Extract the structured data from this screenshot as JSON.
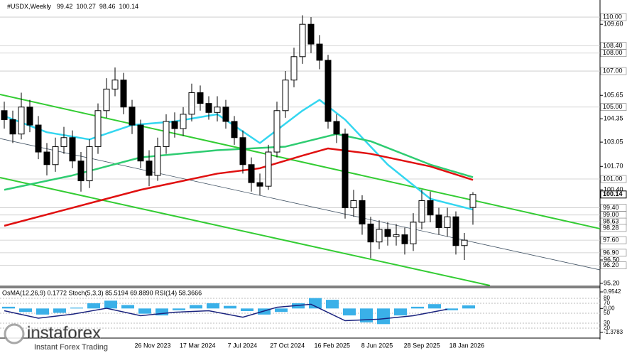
{
  "chart_data": {
    "type": "candlestick",
    "title": "#USDX,Weekly",
    "open": [
      104.8,
      104.3,
      103.5,
      105.0,
      104.0,
      102.5,
      101.8,
      102.8,
      103.3,
      102.0,
      100.9,
      102.8,
      104.8,
      106.0,
      106.5,
      105.0,
      104.0,
      102.0,
      101.2,
      102.8,
      104.2,
      103.8,
      104.6,
      105.8,
      105.2,
      104.7,
      105.0,
      104.2,
      103.3,
      101.8,
      100.8,
      100.6,
      102.5,
      104.8,
      106.5,
      107.8,
      109.6,
      108.5,
      107.6,
      104.2,
      103.5,
      99.4,
      99.8,
      98.5,
      97.5,
      98.2,
      97.8,
      97.9,
      97.4,
      98.6,
      99.8,
      99.0,
      98.3,
      98.9,
      97.3,
      99.42
    ],
    "high": [
      105.3,
      104.8,
      105.8,
      105.4,
      104.5,
      103.0,
      103.3,
      103.9,
      103.7,
      102.5,
      103.2,
      105.2,
      106.6,
      107.2,
      106.9,
      105.4,
      104.3,
      102.6,
      103.3,
      104.6,
      104.7,
      105.0,
      106.3,
      106.2,
      105.6,
      105.6,
      105.4,
      104.5,
      103.7,
      102.2,
      101.3,
      102.9,
      105.3,
      107.0,
      108.3,
      110.1,
      110.0,
      109.0,
      107.9,
      104.6,
      103.8,
      100.4,
      100.1,
      98.9,
      98.7,
      98.6,
      98.5,
      98.3,
      99.1,
      100.4,
      100.3,
      99.4,
      99.4,
      99.2,
      98.0,
      100.27
    ],
    "low": [
      103.8,
      103.0,
      103.2,
      103.6,
      102.1,
      101.2,
      101.4,
      102.4,
      101.6,
      100.3,
      100.5,
      102.4,
      104.4,
      105.6,
      104.6,
      103.5,
      101.6,
      100.6,
      100.9,
      102.4,
      103.3,
      103.4,
      104.2,
      104.8,
      104.3,
      104.2,
      103.8,
      102.9,
      101.3,
      100.3,
      100.1,
      100.4,
      102.2,
      104.4,
      106.1,
      107.4,
      108.0,
      107.1,
      103.8,
      103.0,
      98.8,
      98.9,
      97.9,
      96.6,
      97.1,
      97.3,
      97.3,
      96.8,
      97.0,
      98.2,
      98.6,
      97.9,
      97.8,
      96.8,
      96.5,
      98.46
    ],
    "close": [
      104.3,
      103.5,
      105.0,
      104.0,
      102.5,
      101.8,
      102.8,
      103.3,
      102.0,
      100.9,
      102.8,
      104.8,
      106.0,
      106.5,
      105.0,
      104.0,
      102.0,
      101.2,
      102.8,
      104.2,
      103.8,
      104.6,
      105.8,
      105.2,
      104.7,
      105.0,
      104.2,
      103.3,
      101.8,
      100.8,
      100.6,
      102.5,
      104.8,
      106.5,
      107.8,
      109.6,
      108.5,
      107.6,
      104.2,
      103.5,
      99.4,
      99.8,
      98.5,
      97.5,
      98.2,
      97.8,
      97.9,
      97.4,
      98.6,
      99.8,
      99.0,
      98.3,
      98.9,
      97.3,
      97.6,
      100.14
    ],
    "overlays": [
      {
        "color": "#33d6f0",
        "x": [
          0,
          5,
          10,
          15,
          20,
          25,
          30,
          35,
          37,
          40,
          45,
          50,
          55
        ],
        "values": [
          104.5,
          103.6,
          103.2,
          104.0,
          104.2,
          104.6,
          103.0,
          104.8,
          105.4,
          104.3,
          101.8,
          99.9,
          99.3
        ]
      },
      {
        "color": "#2ecc71",
        "x": [
          0,
          8,
          16,
          25,
          33,
          39,
          43,
          50,
          55
        ],
        "values": [
          100.4,
          101.2,
          102.2,
          102.6,
          102.8,
          103.5,
          103.1,
          101.8,
          101.1
        ]
      },
      {
        "color": "#e01010",
        "x": [
          0,
          8,
          16,
          25,
          30,
          35,
          38,
          43,
          50,
          55
        ],
        "values": [
          98.4,
          99.4,
          100.4,
          101.3,
          101.6,
          102.3,
          102.7,
          102.4,
          101.7,
          100.95
        ]
      }
    ],
    "trendlines": [
      {
        "color": "#33cc33",
        "x": [
          -0.5,
          69.9
        ],
        "values": [
          105.7,
          98.24
        ]
      },
      {
        "color": "#33cc33",
        "x": [
          -0.5,
          57
        ],
        "values": [
          101.08,
          95.08
        ]
      },
      {
        "color": "#445566",
        "x": [
          -0.5,
          69.9
        ],
        "values": [
          103.25,
          95.95
        ]
      }
    ],
    "ylim": [
      95.04,
      110.95
    ],
    "yticks": [
      {
        "value": 109.6,
        "label": "109.60"
      },
      {
        "value": 105.65,
        "label": "105.65"
      },
      {
        "value": 104.35,
        "label": "104.35"
      },
      {
        "value": 103.05,
        "label": "103.05"
      },
      {
        "value": 101.7,
        "label": "101.70"
      },
      {
        "value": 100.4,
        "label": "100.40"
      },
      {
        "value": 96.5,
        "label": "96.50"
      },
      {
        "value": 95.2,
        "label": "95.20"
      }
    ],
    "levels": [
      {
        "value": 110,
        "label": "110.00"
      },
      {
        "value": 108.4,
        "label": "108.40"
      },
      {
        "value": 108,
        "label": "108.00"
      },
      {
        "value": 107,
        "label": "107.00"
      },
      {
        "value": 105,
        "label": "105.00"
      },
      {
        "value": 101,
        "label": "101.00"
      },
      {
        "value": 99.4,
        "label": "99.40"
      },
      {
        "value": 99,
        "label": "99.00"
      },
      {
        "value": 98.63,
        "label": "98.63"
      },
      {
        "value": 98.28,
        "label": "98.28"
      },
      {
        "value": 97.6,
        "label": "97.60"
      },
      {
        "value": 96.9,
        "label": "96.90"
      },
      {
        "value": 96.2,
        "label": "96.20"
      }
    ],
    "x_labels": [
      "26 Nov 2023",
      "17 Mar 2024",
      "7 Jul 2024",
      "27 Oct 2024",
      "16 Feb 2025",
      "8 Jun 2025",
      "28 Sep 2025",
      "18 Jan 2026"
    ],
    "indicator": {
      "title": "OsMA(12,26,9) 0.1772 Stoch(5,3,3) 85.5194 69.8890 RSI(14) 58.3666",
      "osma": {
        "color": "#3ab0e8",
        "values": [
          0.1,
          -0.2,
          -0.35,
          -0.25,
          0.05,
          0.3,
          0.45,
          0.2,
          -0.3,
          -0.4,
          -0.1,
          0.2,
          0.3,
          0.15,
          -0.15,
          -0.35,
          -0.2,
          0.3,
          0.6,
          0.5,
          -0.4,
          -0.8,
          -0.9,
          -0.4,
          0.1,
          0.25,
          -0.1,
          0.18
        ],
        "ylim": [
          -1.3783,
          0.9542
        ],
        "yticks": [
          0.9542,
          {
            "value": 0,
            "label": "0.00"
          },
          -1.3783
        ]
      },
      "rsi": {
        "color": "#1a237e",
        "values": [
          55,
          40,
          48,
          60,
          45,
          52,
          55,
          42,
          62,
          68,
          35,
          38,
          45,
          58
        ],
        "ylim": [
          0,
          100
        ],
        "yticks": [
          20,
          30,
          50,
          70,
          80
        ]
      }
    },
    "watermark": {
      "brand": "instaforex",
      "tagline": "Instant Forex Trading"
    }
  }
}
